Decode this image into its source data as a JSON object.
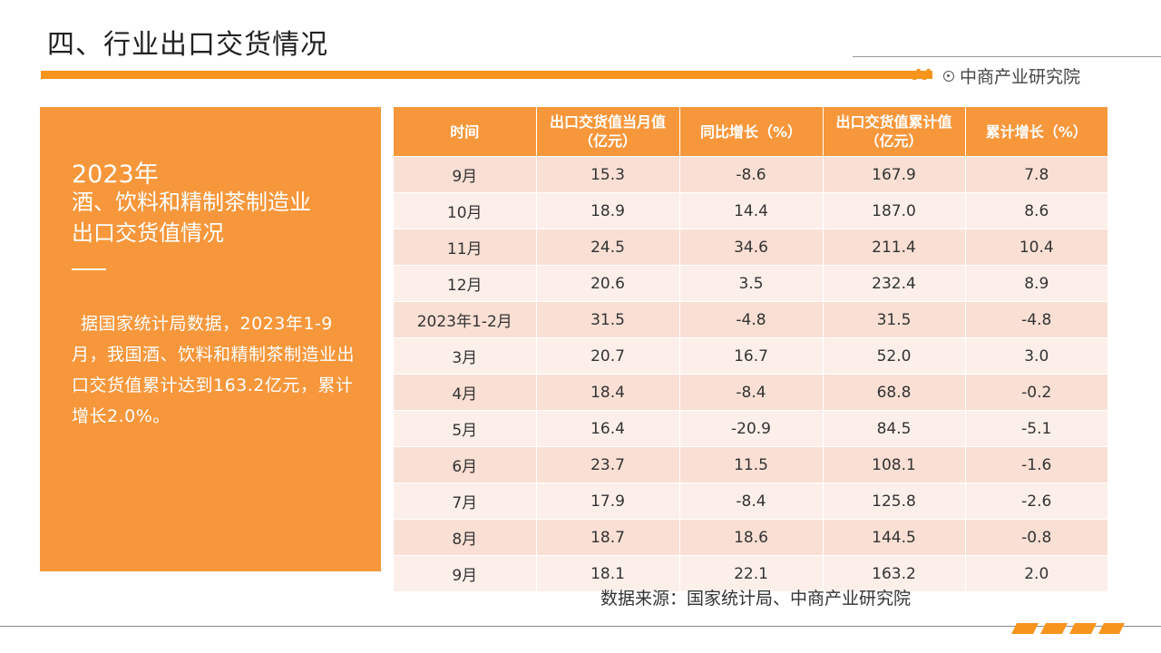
{
  "page": {
    "title": "四、行业出口交货情况",
    "brand": "中商产业研究院"
  },
  "panel": {
    "year": "2023年",
    "subtitle_line1": "酒、饮料和精制茶制造业",
    "subtitle_line2": "出口交货值情况",
    "body": "据国家统计局数据，2023年1-9月，我国酒、饮料和精制茶制造业出口交货值累计达到163.2亿元，累计增长2.0%。"
  },
  "table": {
    "headers": [
      "时间",
      "出口交货值当月值（亿元）",
      "同比增长（%）",
      "出口交货值累计值（亿元）",
      "累计增长（%）"
    ],
    "rows": [
      [
        "9月",
        "15.3",
        "-8.6",
        "167.9",
        "7.8"
      ],
      [
        "10月",
        "18.9",
        "14.4",
        "187.0",
        "8.6"
      ],
      [
        "11月",
        "24.5",
        "34.6",
        "211.4",
        "10.4"
      ],
      [
        "12月",
        "20.6",
        "3.5",
        "232.4",
        "8.9"
      ],
      [
        "2023年1-2月",
        "31.5",
        "-4.8",
        "31.5",
        "-4.8"
      ],
      [
        "3月",
        "20.7",
        "16.7",
        "52.0",
        "3.0"
      ],
      [
        "4月",
        "18.4",
        "-8.4",
        "68.8",
        "-0.2"
      ],
      [
        "5月",
        "16.4",
        "-20.9",
        "84.5",
        "-5.1"
      ],
      [
        "6月",
        "23.7",
        "11.5",
        "108.1",
        "-1.6"
      ],
      [
        "7月",
        "17.9",
        "-8.4",
        "125.8",
        "-2.6"
      ],
      [
        "8月",
        "18.7",
        "18.6",
        "144.5",
        "-0.8"
      ],
      [
        "9月",
        "18.1",
        "22.1",
        "163.2",
        "2.0"
      ]
    ]
  },
  "source": "数据来源：国家统计局、中商产业研究院",
  "colors": {
    "accent": "#f7941d",
    "panel": "#f7973b",
    "row_dark": "#f9dfd4",
    "row_light": "#fcefea"
  }
}
